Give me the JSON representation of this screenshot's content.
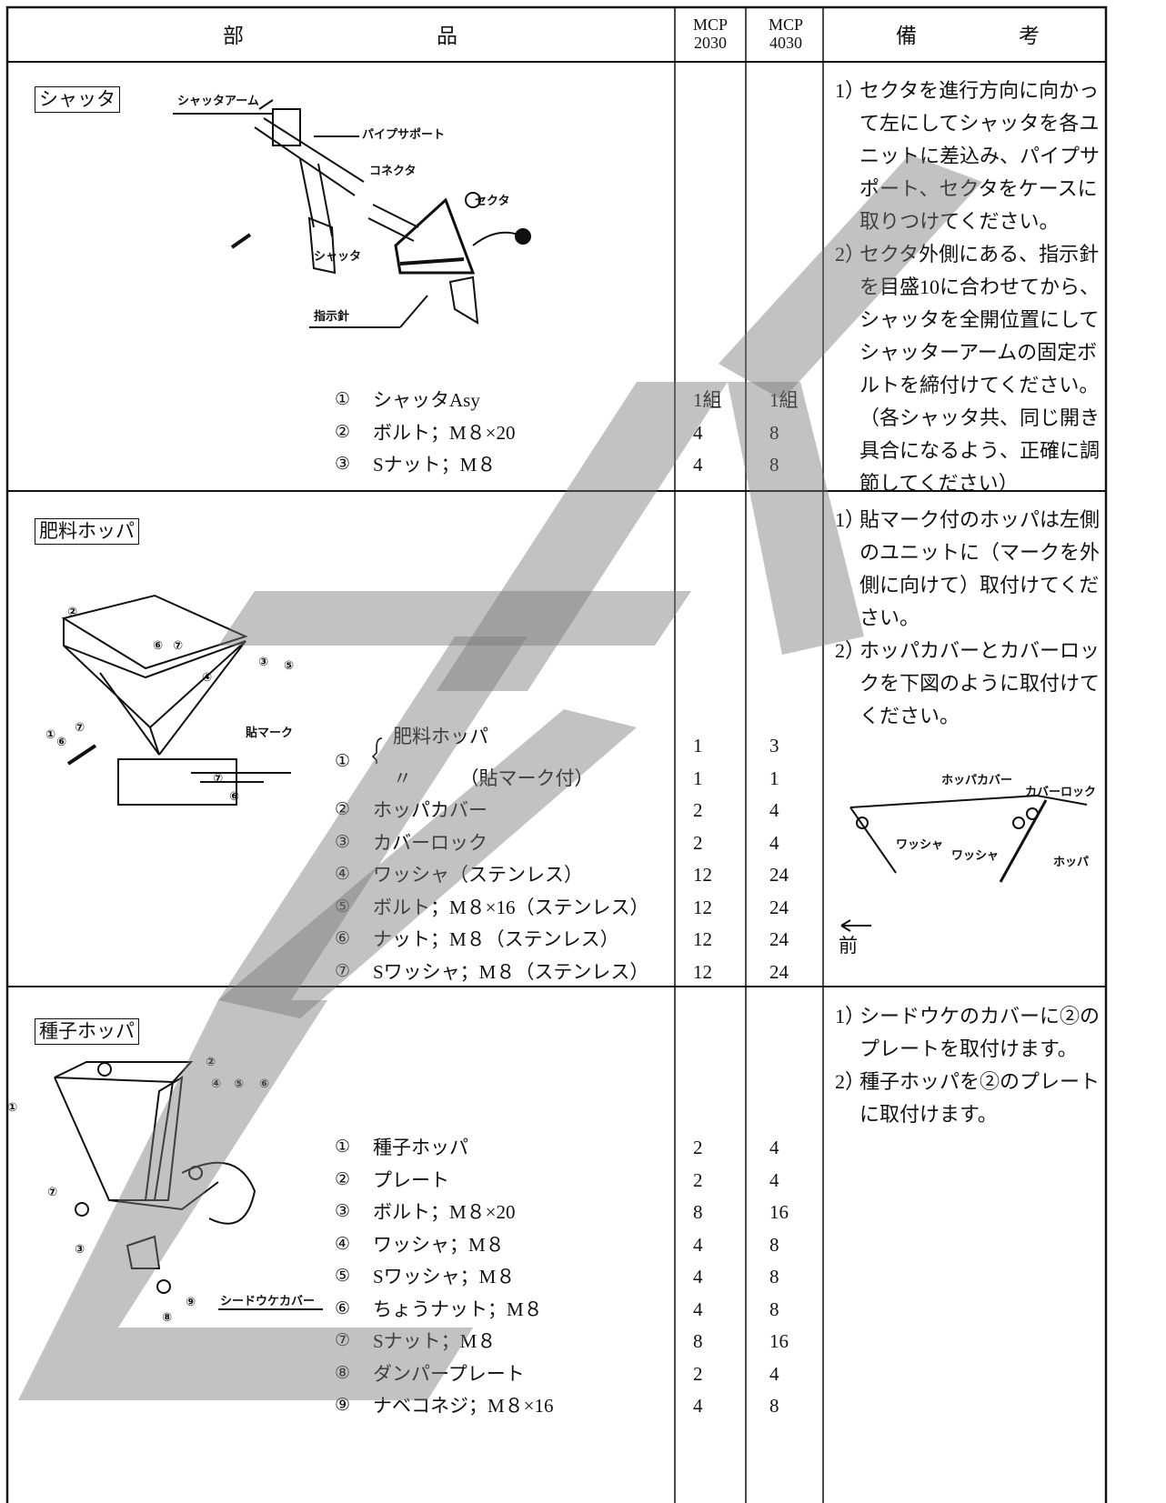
{
  "header": {
    "part": [
      "部",
      "品"
    ],
    "mcp2030": [
      "MCP",
      "2030"
    ],
    "mcp4030": [
      "MCP",
      "4030"
    ],
    "remarks": [
      "備",
      "考"
    ]
  },
  "sections": [
    {
      "title": "シャッタ",
      "figure": {
        "labels": [
          "シャッタアーム",
          "パイプサポート",
          "コネクタ",
          "セクタ",
          "シャッタ",
          "指示針"
        ]
      },
      "items": [
        {
          "num": "①",
          "name": "シャッタAsy",
          "q2030": "1組",
          "q4030": "1組"
        },
        {
          "num": "②",
          "name": "ボルト；M８×20",
          "q2030": 4,
          "q4030": 8
        },
        {
          "num": "③",
          "name": "Sナット；M８",
          "q2030": 4,
          "q4030": 8
        }
      ],
      "notes": [
        {
          "num": "1）",
          "text": "セクタを進行方向に向かって左にしてシャッタを各ユニットに差込み、パイプサポート、セクタをケースに取りつけてください。"
        },
        {
          "num": "2）",
          "text": "セクタ外側にある、指示針を目盛10に合わせてから、シャッタを全開位置にしてシャッターアームの固定ボルトを締付けてください。（各シャッタ共、同じ開き具合になるよう、正確に調節してください）"
        }
      ]
    },
    {
      "title": "肥料ホッパ",
      "figure": {
        "labels": [
          "②",
          "⑥",
          "⑦",
          "③",
          "⑤",
          "④",
          "①",
          "⑦",
          "⑥",
          "貼マーク",
          "⑦",
          "⑥"
        ]
      },
      "items": [
        {
          "num": "①",
          "sub": [
            {
              "name": "肥料ホッパ",
              "q2030": 1,
              "q4030": 3
            },
            {
              "name": "〃　　　（貼マーク付）",
              "q2030": 1,
              "q4030": 1
            }
          ]
        },
        {
          "num": "②",
          "name": "ホッパカバー",
          "q2030": 2,
          "q4030": 4
        },
        {
          "num": "③",
          "name": "カバーロック",
          "q2030": 2,
          "q4030": 4
        },
        {
          "num": "④",
          "name": "ワッシャ（ステンレス）",
          "q2030": 12,
          "q4030": 24
        },
        {
          "num": "⑤",
          "name": "ボルト；M８×16（ステンレス）",
          "q2030": 12,
          "q4030": 24
        },
        {
          "num": "⑥",
          "name": "ナット；M８（ステンレス）",
          "q2030": 12,
          "q4030": 24
        },
        {
          "num": "⑦",
          "name": "Sワッシャ；M８（ステンレス）",
          "q2030": 12,
          "q4030": 24
        }
      ],
      "notes": [
        {
          "num": "1）",
          "text": "貼マーク付のホッパは左側のユニットに（マークを外側に向けて）取付けてください。"
        },
        {
          "num": "2）",
          "text": "ホッパカバーとカバーロックを下図のように取付けてください。"
        }
      ],
      "note_figure": {
        "labels": [
          "ホッパカバー",
          "カバーロック",
          "ワッシャ",
          "ワッシャ",
          "ホッパ",
          "前"
        ]
      }
    },
    {
      "title": "種子ホッパ",
      "figure": {
        "labels": [
          "②",
          "④",
          "⑤",
          "⑥",
          "①",
          "⑦",
          "③",
          "⑨",
          "⑧",
          "シードウケカバー"
        ]
      },
      "items": [
        {
          "num": "①",
          "name": "種子ホッパ",
          "q2030": 2,
          "q4030": 4
        },
        {
          "num": "②",
          "name": "プレート",
          "q2030": 2,
          "q4030": 4
        },
        {
          "num": "③",
          "name": "ボルト；M８×20",
          "q2030": 8,
          "q4030": 16
        },
        {
          "num": "④",
          "name": "ワッシャ；M８",
          "q2030": 4,
          "q4030": 8
        },
        {
          "num": "⑤",
          "name": "Sワッシャ；M８",
          "q2030": 4,
          "q4030": 8
        },
        {
          "num": "⑥",
          "name": "ちょうナット；M８",
          "q2030": 4,
          "q4030": 8
        },
        {
          "num": "⑦",
          "name": "Sナット；M８",
          "q2030": 8,
          "q4030": 16
        },
        {
          "num": "⑧",
          "name": "ダンパープレート",
          "q2030": 2,
          "q4030": 4
        },
        {
          "num": "⑨",
          "name": "ナベコネジ；M８×16",
          "q2030": 4,
          "q4030": 8
        }
      ],
      "notes": [
        {
          "num": "1）",
          "text": "シードウケのカバーに②のプレートを取付けます。"
        },
        {
          "num": "2）",
          "text": "種子ホッパを②のプレートに取付けます。"
        }
      ]
    }
  ]
}
